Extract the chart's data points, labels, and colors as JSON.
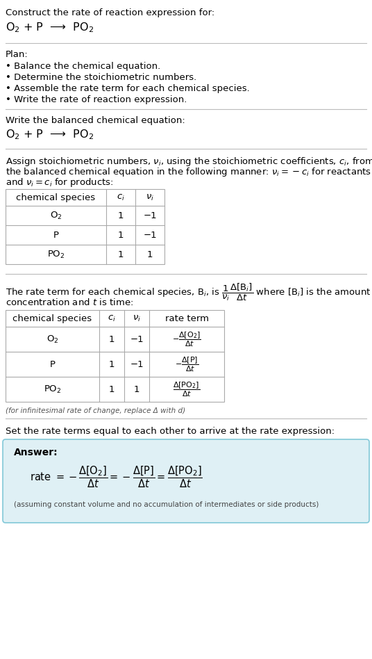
{
  "title_line": "Construct the rate of reaction expression for:",
  "reaction_equation": "O$_2$ + P  ⟶  PO$_2$",
  "plan_header": "Plan:",
  "plan_bullets": [
    "• Balance the chemical equation.",
    "• Determine the stoichiometric numbers.",
    "• Assemble the rate term for each chemical species.",
    "• Write the rate of reaction expression."
  ],
  "balanced_header": "Write the balanced chemical equation:",
  "balanced_eq": "O$_2$ + P  ⟶  PO$_2$",
  "stoich_intro_1": "Assign stoichiometric numbers, $\\nu_i$, using the stoichiometric coefficients, $c_i$, from",
  "stoich_intro_2": "the balanced chemical equation in the following manner: $\\nu_i = -c_i$ for reactants",
  "stoich_intro_3": "and $\\nu_i = c_i$ for products:",
  "table1_headers": [
    "chemical species",
    "$c_i$",
    "$\\nu_i$"
  ],
  "table1_rows": [
    [
      "O$_2$",
      "1",
      "−1"
    ],
    [
      "P",
      "1",
      "−1"
    ],
    [
      "PO$_2$",
      "1",
      "1"
    ]
  ],
  "rate_intro_1": "The rate term for each chemical species, B$_i$, is $\\dfrac{1}{\\nu_i}\\dfrac{\\Delta[\\mathrm{B}_i]}{\\Delta t}$ where [B$_i$] is the amount",
  "rate_intro_2": "concentration and $t$ is time:",
  "table2_headers": [
    "chemical species",
    "$c_i$",
    "$\\nu_i$",
    "rate term"
  ],
  "table2_rows": [
    [
      "O$_2$",
      "1",
      "−1",
      "$-\\dfrac{\\Delta[\\mathrm{O_2}]}{\\Delta t}$"
    ],
    [
      "P",
      "1",
      "−1",
      "$-\\dfrac{\\Delta[\\mathrm{P}]}{\\Delta t}$"
    ],
    [
      "PO$_2$",
      "1",
      "1",
      "$\\dfrac{\\Delta[\\mathrm{PO_2}]}{\\Delta t}$"
    ]
  ],
  "infinitesimal_note": "(for infinitesimal rate of change, replace Δ with d)",
  "set_equal_text": "Set the rate terms equal to each other to arrive at the rate expression:",
  "answer_label": "Answer:",
  "rate_expression": "rate $= -\\dfrac{\\Delta[\\mathrm{O_2}]}{\\Delta t} = -\\dfrac{\\Delta[\\mathrm{P}]}{\\Delta t} = \\dfrac{\\Delta[\\mathrm{PO_2}]}{\\Delta t}$",
  "assuming_note": "(assuming constant volume and no accumulation of intermediates or side products)",
  "answer_bg_color": "#dff0f5",
  "answer_border_color": "#82c8d8",
  "separator_color": "#bbbbbb",
  "text_color": "#000000",
  "table_border_color": "#aaaaaa"
}
